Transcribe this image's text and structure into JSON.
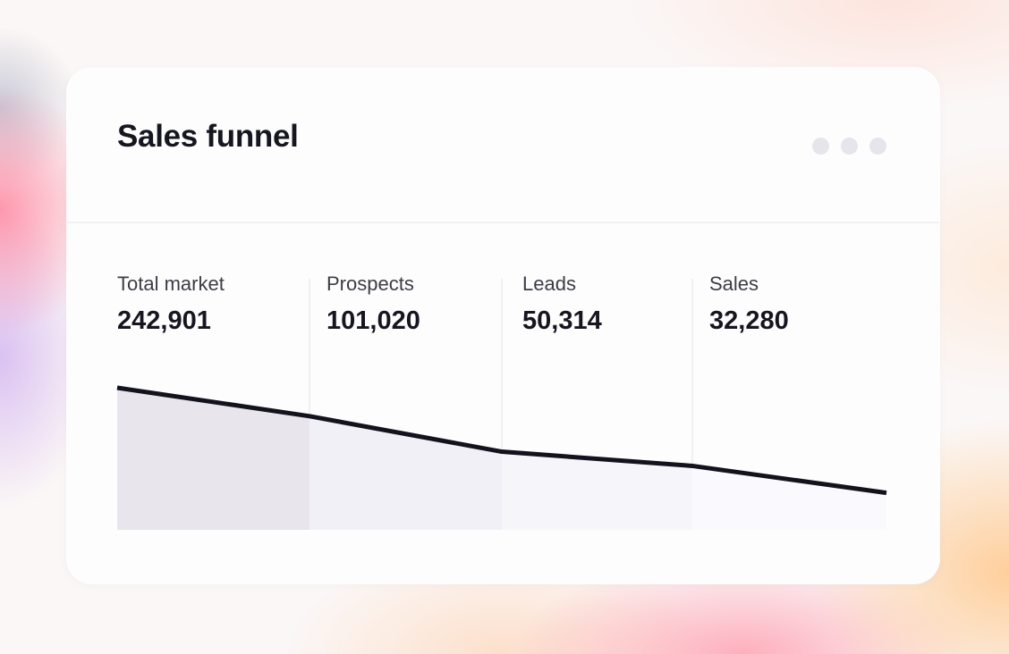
{
  "card": {
    "title": "Sales funnel"
  },
  "menu": {
    "icon": "more-horizontal-icon"
  },
  "colors": {
    "line": "#13131d",
    "stage_fills": [
      "#e8e6ec",
      "#f1f0f6",
      "#f6f5fa",
      "#faf9fd"
    ],
    "divider": "#ececf1"
  },
  "chart_data": {
    "type": "area",
    "title": "Sales funnel",
    "xlabel": "",
    "ylabel": "",
    "grid": false,
    "categories": [
      "Total market",
      "Prospects",
      "Leads",
      "Sales"
    ],
    "values": [
      242901,
      101020,
      50314,
      32280
    ],
    "value_labels": [
      "242,901",
      "101,020",
      "50,314",
      "32,280"
    ],
    "line": [
      {
        "x": 0,
        "y": 100
      },
      {
        "x": 1,
        "y": 80
      },
      {
        "x": 2,
        "y": 55
      },
      {
        "x": 3,
        "y": 45
      },
      {
        "x": 4,
        "y": 26
      }
    ],
    "ylim": [
      0,
      100
    ]
  }
}
